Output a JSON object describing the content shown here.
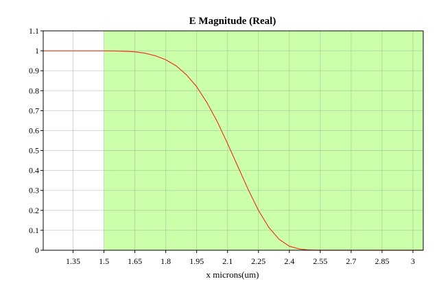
{
  "chart_data": {
    "type": "line",
    "title": "E Magnitude (Real)",
    "xlabel": "x microns(um)",
    "ylabel": "",
    "xlim": [
      1.205,
      3.05
    ],
    "ylim": [
      0,
      1.1
    ],
    "xticks": [
      "1.35",
      "1.5",
      "1.65",
      "1.8",
      "1.95",
      "2.1",
      "2.25",
      "2.4",
      "2.55",
      "2.7",
      "2.85",
      "3"
    ],
    "yticks": [
      "0",
      "0.1",
      "0.2",
      "0.3",
      "0.4",
      "0.5",
      "0.6",
      "0.7",
      "0.8",
      "0.9",
      "1",
      "1.1"
    ],
    "grid": true,
    "shaded_region": {
      "x_start": 1.5,
      "x_end": 3.05,
      "color": "#ccffaa"
    },
    "series": [
      {
        "color": "#e8452c",
        "x": [
          1.205,
          1.5,
          1.6,
          1.65,
          1.7,
          1.75,
          1.8,
          1.85,
          1.9,
          1.95,
          2.0,
          2.05,
          2.1,
          2.15,
          2.2,
          2.25,
          2.3,
          2.35,
          2.4,
          2.45,
          2.5,
          2.55,
          2.6,
          3.05
        ],
        "y": [
          1.0,
          1.0,
          0.998,
          0.995,
          0.988,
          0.975,
          0.955,
          0.925,
          0.88,
          0.82,
          0.74,
          0.645,
          0.535,
          0.42,
          0.305,
          0.2,
          0.115,
          0.055,
          0.02,
          0.006,
          0.001,
          0.0,
          0.0,
          0.0
        ]
      }
    ]
  }
}
